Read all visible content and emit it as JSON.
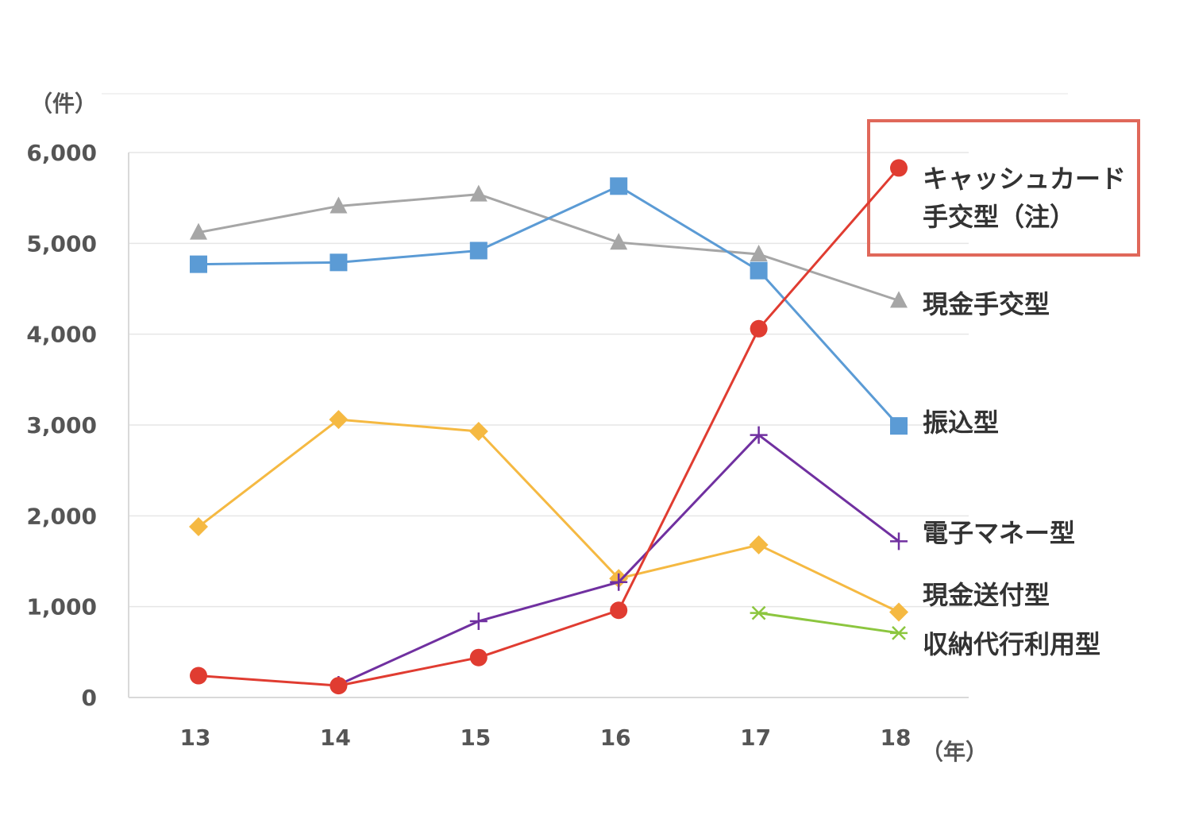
{
  "chart_data": {
    "type": "line",
    "y_unit": "（件）",
    "x_unit": "（年）",
    "categories": [
      "13",
      "14",
      "15",
      "16",
      "17",
      "18"
    ],
    "ylim": [
      0,
      6000
    ],
    "yticks": [
      0,
      1000,
      2000,
      3000,
      4000,
      5000,
      6000
    ],
    "ytick_labels": [
      "0",
      "1,000",
      "2,000",
      "3,000",
      "4,000",
      "5,000",
      "6,000"
    ],
    "grid": true,
    "series": [
      {
        "key": "genkin_tekou",
        "name": "現金手交型",
        "color": "#a6a6a6",
        "marker": "triangle",
        "values": [
          5120,
          5410,
          5540,
          5010,
          4880,
          4370
        ]
      },
      {
        "key": "furikomi",
        "name": "振込型",
        "color": "#5b9bd5",
        "marker": "square",
        "values": [
          4770,
          4790,
          4920,
          5630,
          4700,
          2990
        ]
      },
      {
        "key": "genkin_soufu",
        "name": "現金送付型",
        "color": "#f5b942",
        "marker": "diamond",
        "values": [
          1880,
          3060,
          2930,
          1310,
          1680,
          940
        ]
      },
      {
        "key": "denshi_money",
        "name": "電子マネー型",
        "color": "#7030a0",
        "marker": "plus",
        "values": [
          null,
          140,
          840,
          1270,
          2890,
          1720
        ]
      },
      {
        "key": "shuno_daikou",
        "name": "収納代行利用型",
        "color": "#8cc63f",
        "marker": "star",
        "values": [
          null,
          null,
          null,
          null,
          930,
          710
        ]
      },
      {
        "key": "cash_card",
        "name_lines": [
          "キャッシュカード",
          "手交型（注）"
        ],
        "color": "#e03c31",
        "marker": "circle",
        "values": [
          240,
          130,
          440,
          960,
          4060,
          5830
        ]
      }
    ],
    "highlight": {
      "series": "cash_card",
      "border_color": "#e0685a"
    }
  }
}
